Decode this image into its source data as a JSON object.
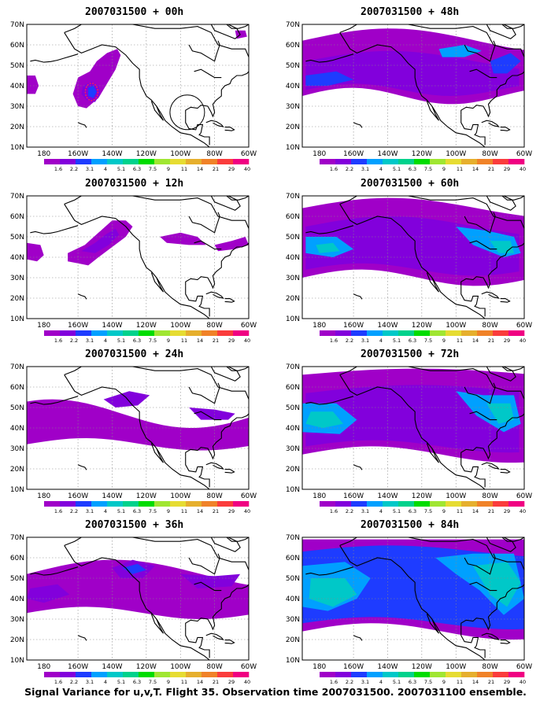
{
  "caption": "Signal Variance for u,v,T. Flight 35. Observation time 2007031500. 2007031100 ensemble.",
  "colors": {
    "levels": [
      "#a000c8",
      "#8200dc",
      "#1e3cff",
      "#00a0ff",
      "#00c8c8",
      "#00d28c",
      "#00dc00",
      "#a0e632",
      "#e6dc32",
      "#e6af2d",
      "#f08228",
      "#fa3c3c",
      "#f00082"
    ],
    "coast": "#000000",
    "grid": "#888888"
  },
  "colorbar_labels": [
    "1.6",
    "2.2",
    "3.1",
    "4",
    "5.1",
    "6.3",
    "7.5",
    "9",
    "11",
    "14",
    "21",
    "29",
    "40"
  ],
  "lon_labels": [
    "180",
    "160W",
    "140W",
    "120W",
    "100W",
    "80W",
    "60W"
  ],
  "lat_labels": [
    "70N",
    "60N",
    "50N",
    "40N",
    "30N",
    "20N",
    "10N"
  ],
  "panels": [
    {
      "id": "p00",
      "title": "2007031500 + 00h",
      "lead": 0
    },
    {
      "id": "p12",
      "title": "2007031500 + 12h",
      "lead": 12
    },
    {
      "id": "p24",
      "title": "2007031500 + 24h",
      "lead": 24
    },
    {
      "id": "p36",
      "title": "2007031500 + 36h",
      "lead": 36
    },
    {
      "id": "p48",
      "title": "2007031500 + 48h",
      "lead": 48
    },
    {
      "id": "p60",
      "title": "2007031500 + 60h",
      "lead": 60
    },
    {
      "id": "p72",
      "title": "2007031500 + 72h",
      "lead": 72
    },
    {
      "id": "p84",
      "title": "2007031500 + 84h",
      "lead": 84
    }
  ]
}
